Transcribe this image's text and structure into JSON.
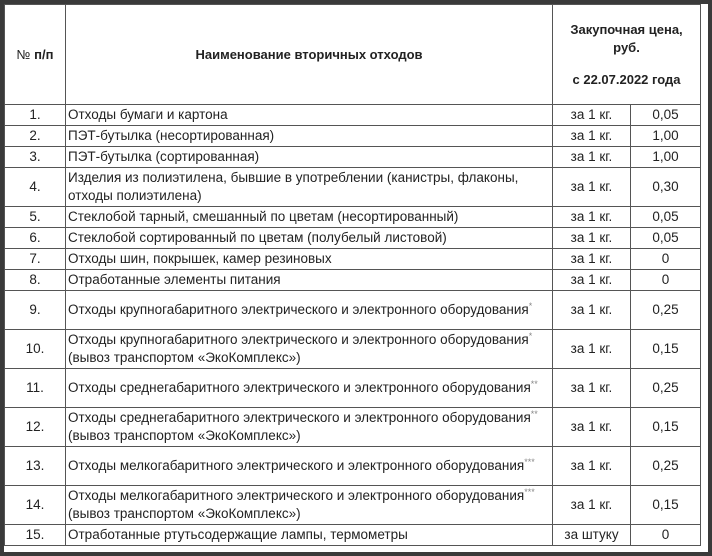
{
  "header": {
    "num_symbol": "№",
    "num_label": "п/п",
    "name": "Наименование вторичных отходов",
    "price_line1": "Закупочная цена,",
    "price_line2": "руб.",
    "price_line3": "с 22.07.2022 года"
  },
  "rows": [
    {
      "num": "1.",
      "name": "Отходы бумаги и картона",
      "mark": "",
      "suffix": "",
      "unit": "за 1 кг.",
      "price": "0,05"
    },
    {
      "num": "2.",
      "name": "ПЭТ-бутылка (несортированная)",
      "mark": "",
      "suffix": "",
      "unit": "за 1 кг.",
      "price": "1,00"
    },
    {
      "num": "3.",
      "name": "ПЭТ-бутылка (сортированная)",
      "mark": "",
      "suffix": "",
      "unit": "за 1 кг.",
      "price": "1,00"
    },
    {
      "num": "4.",
      "name": "Изделия из полиэтилена, бывшие в употреблении (канистры, флаконы, отходы полиэтилена)",
      "mark": "",
      "suffix": "",
      "unit": "за 1 кг.",
      "price": "0,30"
    },
    {
      "num": "5.",
      "name": "Стеклобой тарный, смешанный по цветам (несортированный)",
      "mark": "",
      "suffix": "",
      "unit": "за 1 кг.",
      "price": "0,05"
    },
    {
      "num": "6.",
      "name": "Стеклобой сортированный по цветам (полубелый листовой)",
      "mark": "",
      "suffix": "",
      "unit": "за 1 кг.",
      "price": "0,05"
    },
    {
      "num": "7.",
      "name": "Отходы шин, покрышек, камер резиновых",
      "mark": "",
      "suffix": "",
      "unit": "за 1 кг.",
      "price": "0"
    },
    {
      "num": "8.",
      "name": "Отработанные элементы питания",
      "mark": "",
      "suffix": "",
      "unit": "за 1 кг.",
      "price": "0"
    },
    {
      "num": "9.",
      "name": "Отходы крупногабаритного электрического и электронного оборудования",
      "mark": "*",
      "suffix": "",
      "unit": "за 1 кг.",
      "price": "0,25"
    },
    {
      "num": "10.",
      "name": "Отходы крупногабаритного электрического и электронного оборудования",
      "mark": "*",
      "suffix": " (вывоз транспортом «ЭкоКомплекс»)",
      "unit": "за 1 кг.",
      "price": "0,15"
    },
    {
      "num": "11.",
      "name": "Отходы среднегабаритного электрического и электронного оборудования",
      "mark": "**",
      "suffix": "",
      "unit": "за 1 кг.",
      "price": "0,25"
    },
    {
      "num": "12.",
      "name": "Отходы среднегабаритного электрического и электронного оборудования",
      "mark": "**",
      "suffix": " (вывоз транспортом «ЭкоКомплекс»)",
      "unit": "за 1 кг.",
      "price": "0,15"
    },
    {
      "num": "13.",
      "name": "Отходы мелкогабаритного электрического и электронного оборудования",
      "mark": "***",
      "suffix": "",
      "unit": "за 1 кг.",
      "price": "0,25"
    },
    {
      "num": "14.",
      "name": "Отходы мелкогабаритного электрического и электронного оборудования",
      "mark": "***",
      "suffix": " (вывоз транспортом «ЭкоКомплекс»)",
      "unit": "за 1 кг.",
      "price": "0,15"
    },
    {
      "num": "15.",
      "name": "Отработанные ртутьсодержащие лампы, термометры",
      "mark": "",
      "suffix": "",
      "unit": "за штуку",
      "price": "0"
    }
  ]
}
